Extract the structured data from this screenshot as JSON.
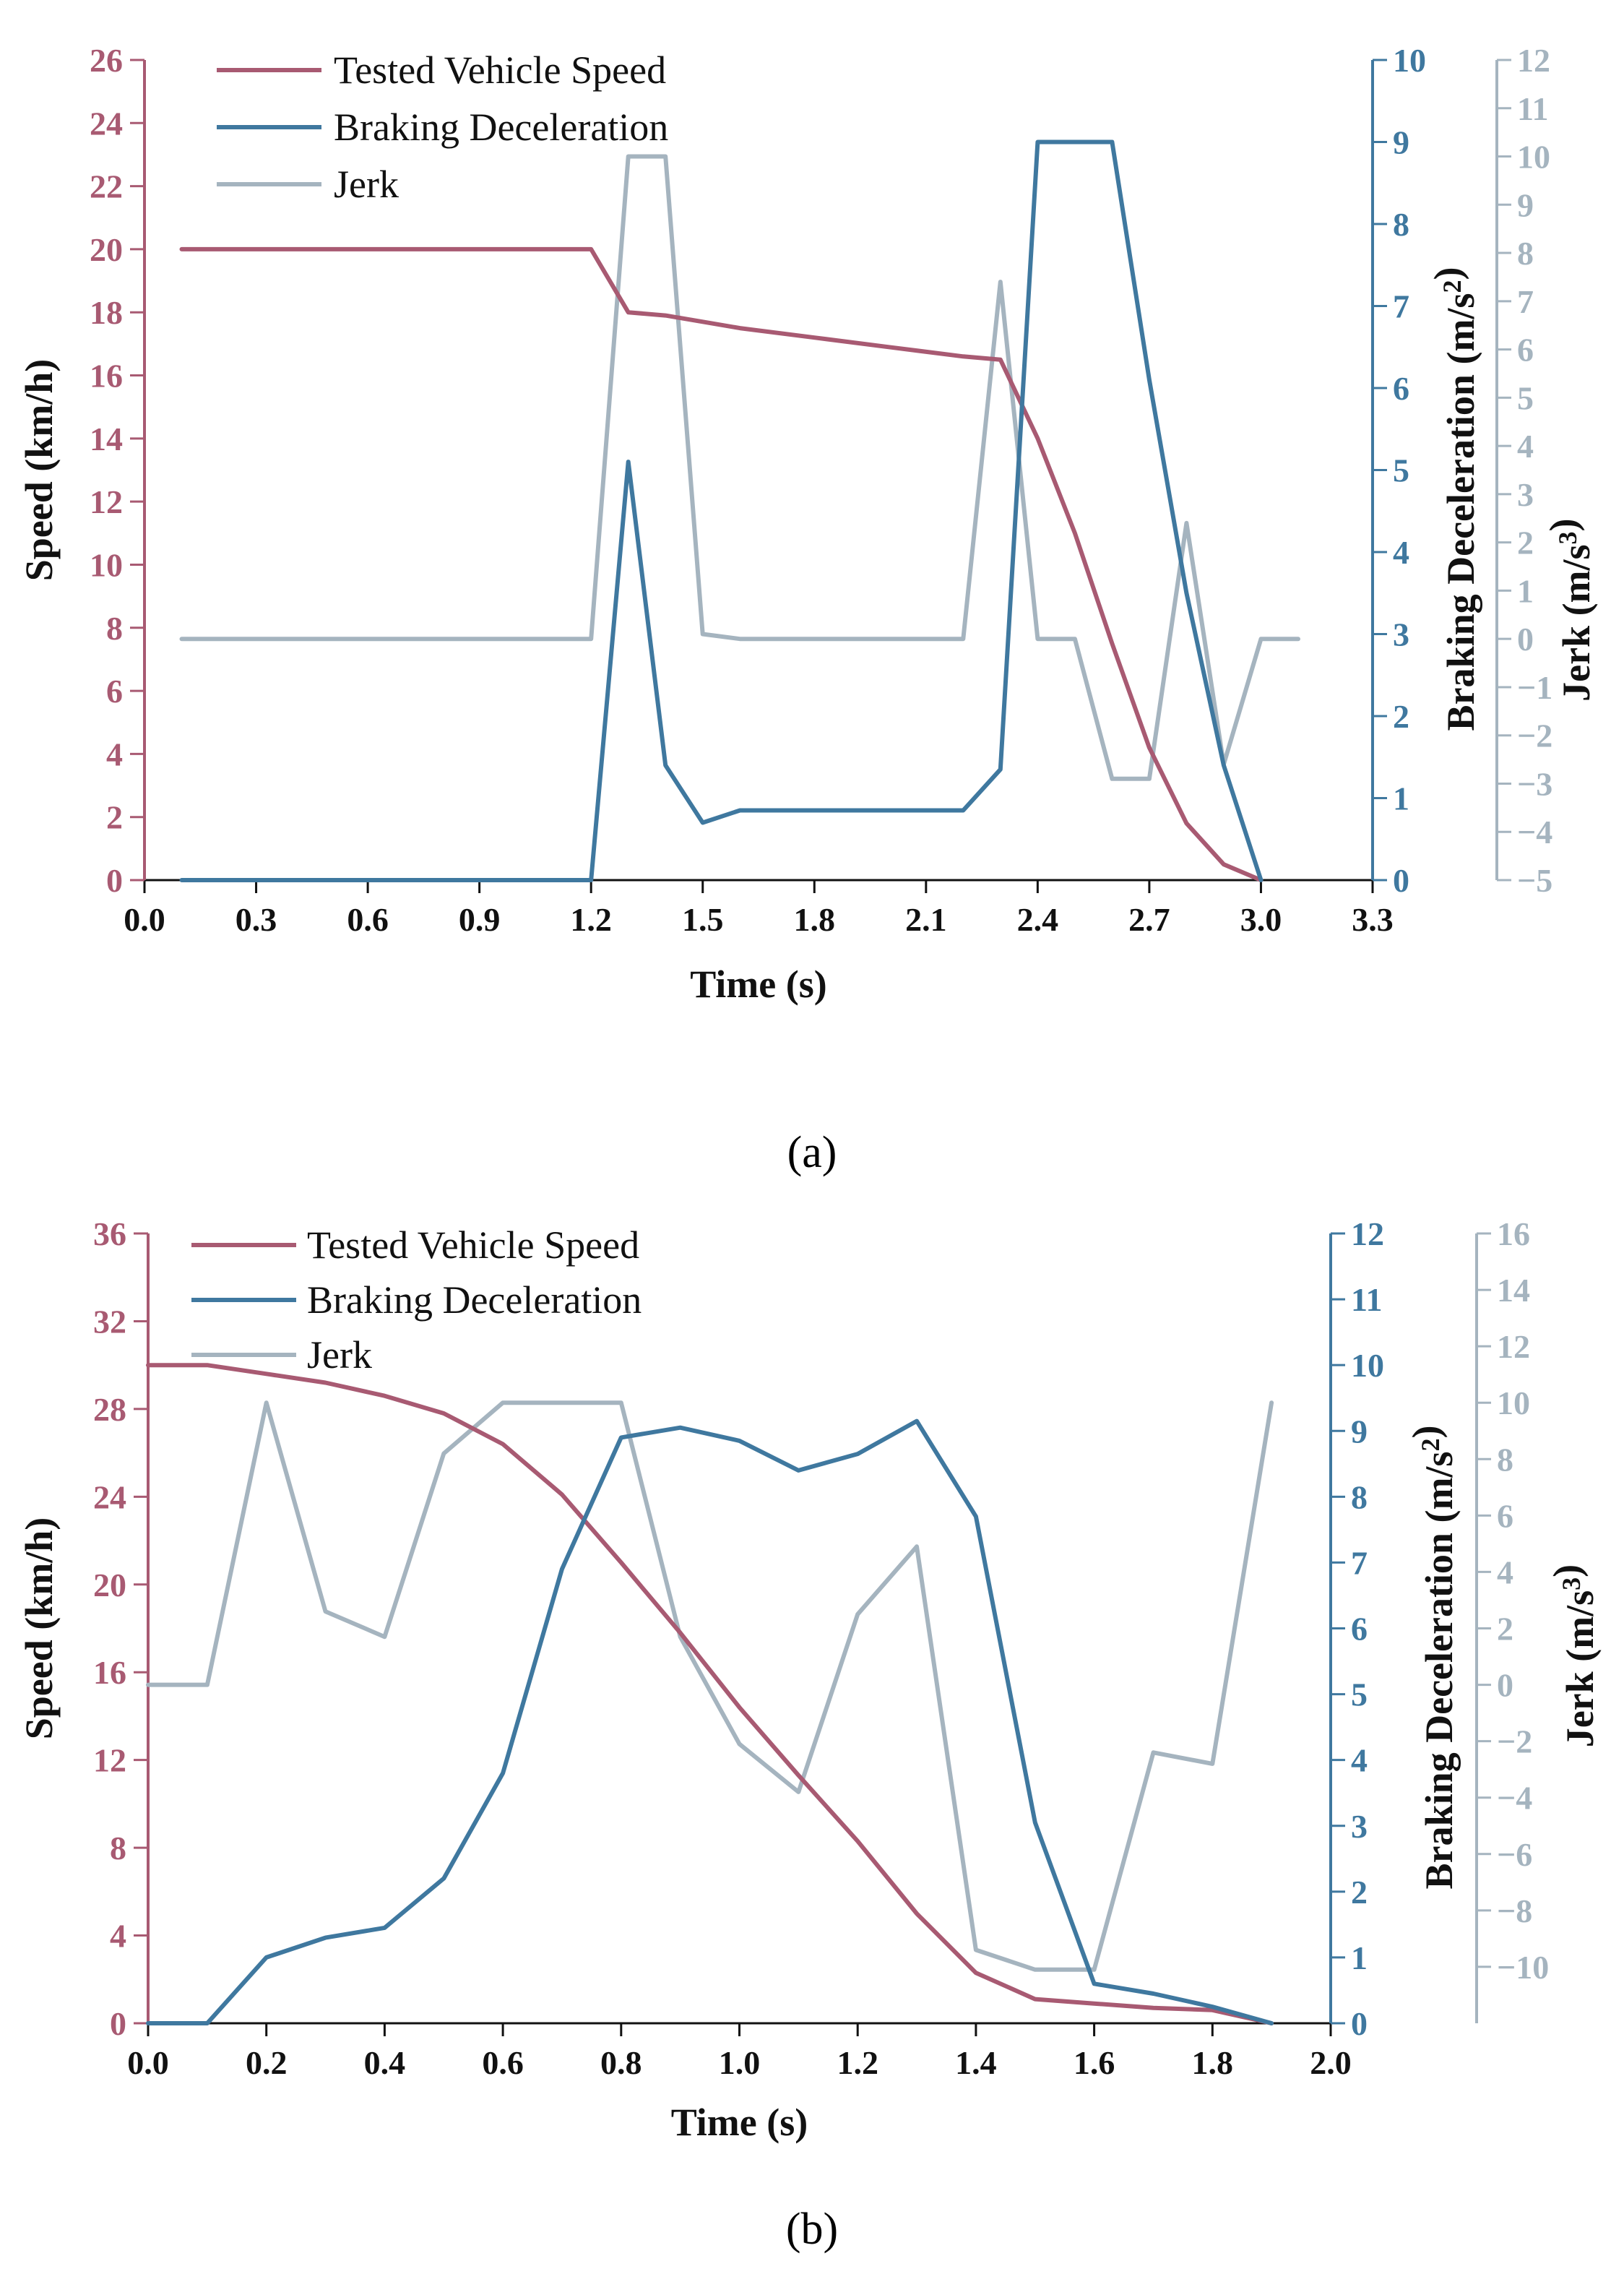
{
  "colors": {
    "speed": "#a85a72",
    "decel": "#3f789f",
    "jerk": "#a5b4bf",
    "axis": "#111111"
  },
  "chart_data": [
    {
      "id": "a",
      "type": "line",
      "caption": "(a)",
      "xlabel": "Time (s)",
      "ylabel": "Speed (km/h)",
      "y2label": "Braking Deceleration (m/s²)",
      "y3label": "Jerk (m/s³)",
      "xlim": [
        0,
        3.3
      ],
      "ylim": [
        0,
        26
      ],
      "y2lim": [
        0,
        10
      ],
      "y3lim": [
        -5,
        12
      ],
      "xticks": [
        "0.0",
        "0.3",
        "0.6",
        "0.9",
        "1.2",
        "1.5",
        "1.8",
        "2.1",
        "2.4",
        "2.7",
        "3.0",
        "3.3"
      ],
      "yticks": [
        "0",
        "2",
        "4",
        "6",
        "8",
        "10",
        "12",
        "14",
        "16",
        "18",
        "20",
        "22",
        "24",
        "26"
      ],
      "y2ticks": [
        "0",
        "1",
        "2",
        "3",
        "4",
        "5",
        "6",
        "7",
        "8",
        "9",
        "10"
      ],
      "y3ticks": [
        "−5",
        "−4",
        "−3",
        "−2",
        "−1",
        "0",
        "1",
        "2",
        "3",
        "4",
        "5",
        "6",
        "7",
        "8",
        "9",
        "10",
        "11",
        "12"
      ],
      "legend": [
        "Tested Vehicle Speed",
        "Braking Deceleration",
        "Jerk"
      ],
      "series": [
        {
          "name": "Tested Vehicle Speed",
          "axis": "y",
          "x": [
            0.1,
            1.2,
            1.3,
            1.4,
            1.5,
            1.6,
            1.8,
            2.0,
            2.2,
            2.3,
            2.4,
            2.5,
            2.6,
            2.7,
            2.8,
            2.9,
            3.0
          ],
          "values": [
            20,
            20,
            18,
            17.9,
            17.7,
            17.5,
            17.2,
            16.9,
            16.6,
            16.5,
            14,
            11,
            7.5,
            4.2,
            1.8,
            0.5,
            0
          ]
        },
        {
          "name": "Braking Deceleration",
          "axis": "y2",
          "x": [
            0.1,
            1.2,
            1.3,
            1.4,
            1.5,
            1.6,
            2.2,
            2.3,
            2.4,
            2.6,
            2.7,
            2.8,
            2.9,
            3.0
          ],
          "values": [
            0,
            0,
            5.1,
            1.4,
            0.7,
            0.85,
            0.85,
            1.35,
            9,
            9,
            6.1,
            3.5,
            1.4,
            0
          ]
        },
        {
          "name": "Jerk",
          "axis": "y3",
          "x": [
            0.1,
            1.2,
            1.3,
            1.4,
            1.5,
            1.6,
            2.2,
            2.3,
            2.4,
            2.5,
            2.6,
            2.7,
            2.8,
            2.9,
            3.0,
            3.1
          ],
          "values": [
            0,
            0,
            10,
            10,
            0.1,
            0,
            0,
            7.4,
            0,
            0,
            -2.9,
            -2.9,
            2.4,
            -2.6,
            0,
            0
          ]
        }
      ]
    },
    {
      "id": "b",
      "type": "line",
      "caption": "(b)",
      "xlabel": "Time (s)",
      "ylabel": "Speed (km/h)",
      "y2label": "Braking Deceleration (m/s²)",
      "y3label": "Jerk (m/s³)",
      "xlim": [
        0,
        2.0
      ],
      "ylim": [
        0,
        36
      ],
      "y2lim": [
        0,
        12
      ],
      "y3lim": [
        -12,
        16
      ],
      "xticks": [
        "0.0",
        "0.2",
        "0.4",
        "0.6",
        "0.8",
        "1.0",
        "1.2",
        "1.4",
        "1.6",
        "1.8",
        "2.0"
      ],
      "yticks": [
        "0",
        "4",
        "8",
        "12",
        "16",
        "20",
        "24",
        "28",
        "32",
        "36"
      ],
      "y2ticks": [
        "0",
        "1",
        "2",
        "3",
        "4",
        "5",
        "6",
        "7",
        "8",
        "9",
        "10",
        "11",
        "12"
      ],
      "y3ticks": [
        "−10",
        "−8",
        "−6",
        "−4",
        "−2",
        "0",
        "2",
        "4",
        "6",
        "8",
        "10",
        "12",
        "14",
        "16"
      ],
      "legend": [
        "Tested Vehicle Speed",
        "Braking Deceleration",
        "Jerk"
      ],
      "series": [
        {
          "name": "Tested Vehicle Speed",
          "axis": "y",
          "x": [
            0.0,
            0.1,
            0.2,
            0.3,
            0.4,
            0.5,
            0.6,
            0.7,
            0.8,
            0.9,
            1.0,
            1.1,
            1.2,
            1.3,
            1.4,
            1.5,
            1.6,
            1.7,
            1.8,
            1.9
          ],
          "values": [
            30,
            30,
            29.6,
            29.2,
            28.6,
            27.8,
            26.4,
            24.1,
            21,
            17.8,
            14.4,
            11.3,
            8.3,
            5,
            2.3,
            1.1,
            0.9,
            0.7,
            0.6,
            0
          ]
        },
        {
          "name": "Braking Deceleration",
          "axis": "y2",
          "x": [
            0.0,
            0.1,
            0.2,
            0.3,
            0.4,
            0.5,
            0.6,
            0.7,
            0.8,
            0.9,
            1.0,
            1.1,
            1.2,
            1.3,
            1.4,
            1.5,
            1.6,
            1.7,
            1.8,
            1.9
          ],
          "values": [
            0,
            0,
            1,
            1.3,
            1.45,
            2.2,
            3.8,
            6.9,
            8.9,
            9.05,
            8.85,
            8.4,
            8.65,
            9.15,
            7.7,
            3.05,
            0.6,
            0.45,
            0.25,
            0
          ]
        },
        {
          "name": "Jerk",
          "axis": "y3",
          "x": [
            0.0,
            0.1,
            0.2,
            0.3,
            0.4,
            0.5,
            0.6,
            0.7,
            0.8,
            0.9,
            1.0,
            1.1,
            1.2,
            1.3,
            1.4,
            1.5,
            1.6,
            1.7,
            1.8,
            1.9
          ],
          "values": [
            0,
            0,
            10,
            2.6,
            1.7,
            8.2,
            10,
            10,
            10,
            1.7,
            -2.1,
            -3.8,
            2.5,
            4.9,
            -9.4,
            -10.1,
            -10.1,
            -2.4,
            -2.8,
            10
          ]
        }
      ]
    }
  ]
}
